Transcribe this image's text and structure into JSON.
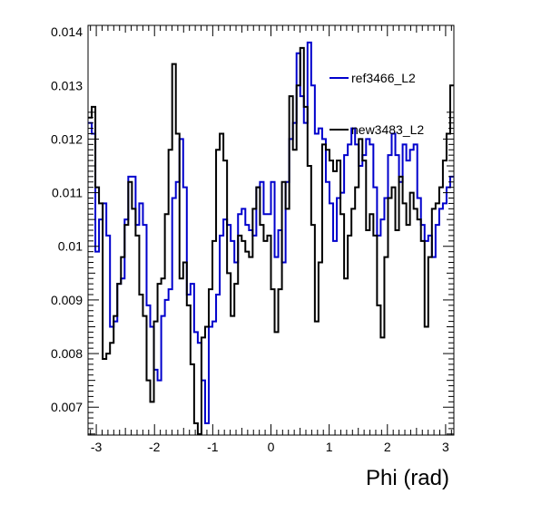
{
  "chart_data": {
    "type": "line",
    "title": "",
    "xlabel": "Phi (rad)",
    "ylabel": "",
    "xlim": [
      -3.1416,
      3.1416
    ],
    "ylim": [
      0.00648,
      0.01412
    ],
    "x_ticks": [
      "-3",
      "-2",
      "-1",
      "0",
      "1",
      "2",
      "3"
    ],
    "y_ticks": [
      "0.007",
      "0.008",
      "0.009",
      "0.01",
      "0.011",
      "0.012",
      "0.013",
      "0.014"
    ],
    "legend_position": "top-right",
    "grid": false,
    "bins": 100,
    "series": [
      {
        "name": "ref3466_L2",
        "color": "#0000cc",
        "values": [
          0.0123,
          0.0121,
          0.0099,
          0.0105,
          0.0108,
          0.0102,
          0.0085,
          0.0086,
          0.0093,
          0.0094,
          0.0105,
          0.0113,
          0.0113,
          0.0104,
          0.0108,
          0.0104,
          0.0089,
          0.0085,
          0.0077,
          0.0075,
          0.0087,
          0.009,
          0.0092,
          0.0109,
          0.0112,
          0.012,
          0.0111,
          0.0091,
          0.0093,
          0.0084,
          0.0082,
          0.0075,
          0.0067,
          0.0085,
          0.0086,
          0.0091,
          0.0102,
          0.0105,
          0.0104,
          0.0101,
          0.0097,
          0.0106,
          0.0107,
          0.0104,
          0.0103,
          0.0102,
          0.0111,
          0.0112,
          0.0106,
          0.0106,
          0.0112,
          0.0098,
          0.0103,
          0.0097,
          0.0112,
          0.012,
          0.0123,
          0.0136,
          0.0128,
          0.0123,
          0.0138,
          0.013,
          0.0121,
          0.0122,
          0.012,
          0.0112,
          0.0108,
          0.0101,
          0.0109,
          0.011,
          0.0117,
          0.0119,
          0.0122,
          0.0119,
          0.0115,
          0.0117,
          0.012,
          0.0119,
          0.0111,
          0.0102,
          0.0105,
          0.0109,
          0.0117,
          0.0121,
          0.0117,
          0.0112,
          0.0119,
          0.0116,
          0.0118,
          0.0119,
          0.0109,
          0.0104,
          0.0101,
          0.0102,
          0.0098,
          0.0104,
          0.0107,
          0.0108,
          0.0111,
          0.0113
        ]
      },
      {
        "name": "new3483_L2",
        "color": "#000000",
        "values": [
          0.0124,
          0.0126,
          0.0111,
          0.0108,
          0.0079,
          0.008,
          0.0082,
          0.0087,
          0.0093,
          0.0098,
          0.0104,
          0.0112,
          0.0107,
          0.0102,
          0.0091,
          0.0087,
          0.0075,
          0.0071,
          0.0086,
          0.0093,
          0.0094,
          0.0106,
          0.0118,
          0.0134,
          0.0121,
          0.0094,
          0.0097,
          0.0089,
          0.0078,
          0.0067,
          0.0065,
          0.0083,
          0.0085,
          0.0092,
          0.0101,
          0.0118,
          0.0121,
          0.0116,
          0.0095,
          0.0087,
          0.0093,
          0.0102,
          0.0101,
          0.0099,
          0.0098,
          0.0107,
          0.0111,
          0.0104,
          0.0101,
          0.0102,
          0.0092,
          0.0084,
          0.0092,
          0.0112,
          0.0107,
          0.0128,
          0.0118,
          0.013,
          0.0137,
          0.0126,
          0.0115,
          0.0104,
          0.0086,
          0.0097,
          0.0119,
          0.0118,
          0.0116,
          0.0114,
          0.0116,
          0.0106,
          0.0094,
          0.0102,
          0.0107,
          0.0111,
          0.012,
          0.0116,
          0.0103,
          0.0106,
          0.0102,
          0.0089,
          0.0083,
          0.0098,
          0.0109,
          0.0111,
          0.0103,
          0.0113,
          0.0108,
          0.0104,
          0.011,
          0.0107,
          0.0105,
          0.0101,
          0.0085,
          0.0098,
          0.0107,
          0.0108,
          0.0111,
          0.0116,
          0.0121,
          0.013
        ]
      }
    ]
  }
}
